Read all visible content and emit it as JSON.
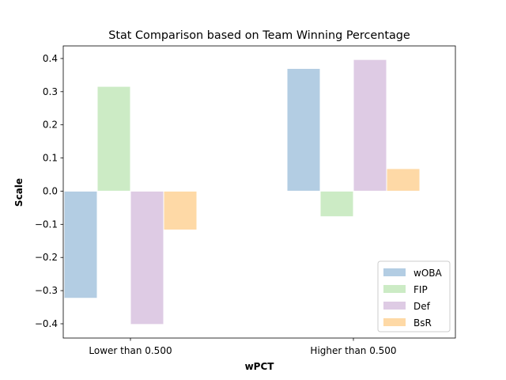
{
  "chart_data": {
    "type": "bar",
    "title": "Stat Comparison based on Team Winning Percentage",
    "xlabel": "wPCT",
    "ylabel": "Scale",
    "categories": [
      "Lower than 0.500",
      "Higher than 0.500"
    ],
    "series": [
      {
        "name": "wOBA",
        "color": "#b3cde3",
        "values": [
          -0.323,
          0.37
        ]
      },
      {
        "name": "FIP",
        "color": "#ccebc5",
        "values": [
          0.316,
          -0.077
        ]
      },
      {
        "name": "Def",
        "color": "#decbe4",
        "values": [
          -0.402,
          0.397
        ]
      },
      {
        "name": "BsR",
        "color": "#fed9a6",
        "values": [
          -0.117,
          0.068
        ]
      }
    ],
    "ylim": [
      -0.443,
      0.438
    ],
    "yticks": [
      -0.4,
      -0.3,
      -0.2,
      -0.1,
      0.0,
      0.1,
      0.2,
      0.3,
      0.4
    ],
    "ytick_labels": [
      "−0.4",
      "−0.3",
      "−0.2",
      "−0.1",
      "0.0",
      "0.1",
      "0.2",
      "0.3",
      "0.4"
    ],
    "grid": false,
    "legend_position": "lower-right"
  }
}
